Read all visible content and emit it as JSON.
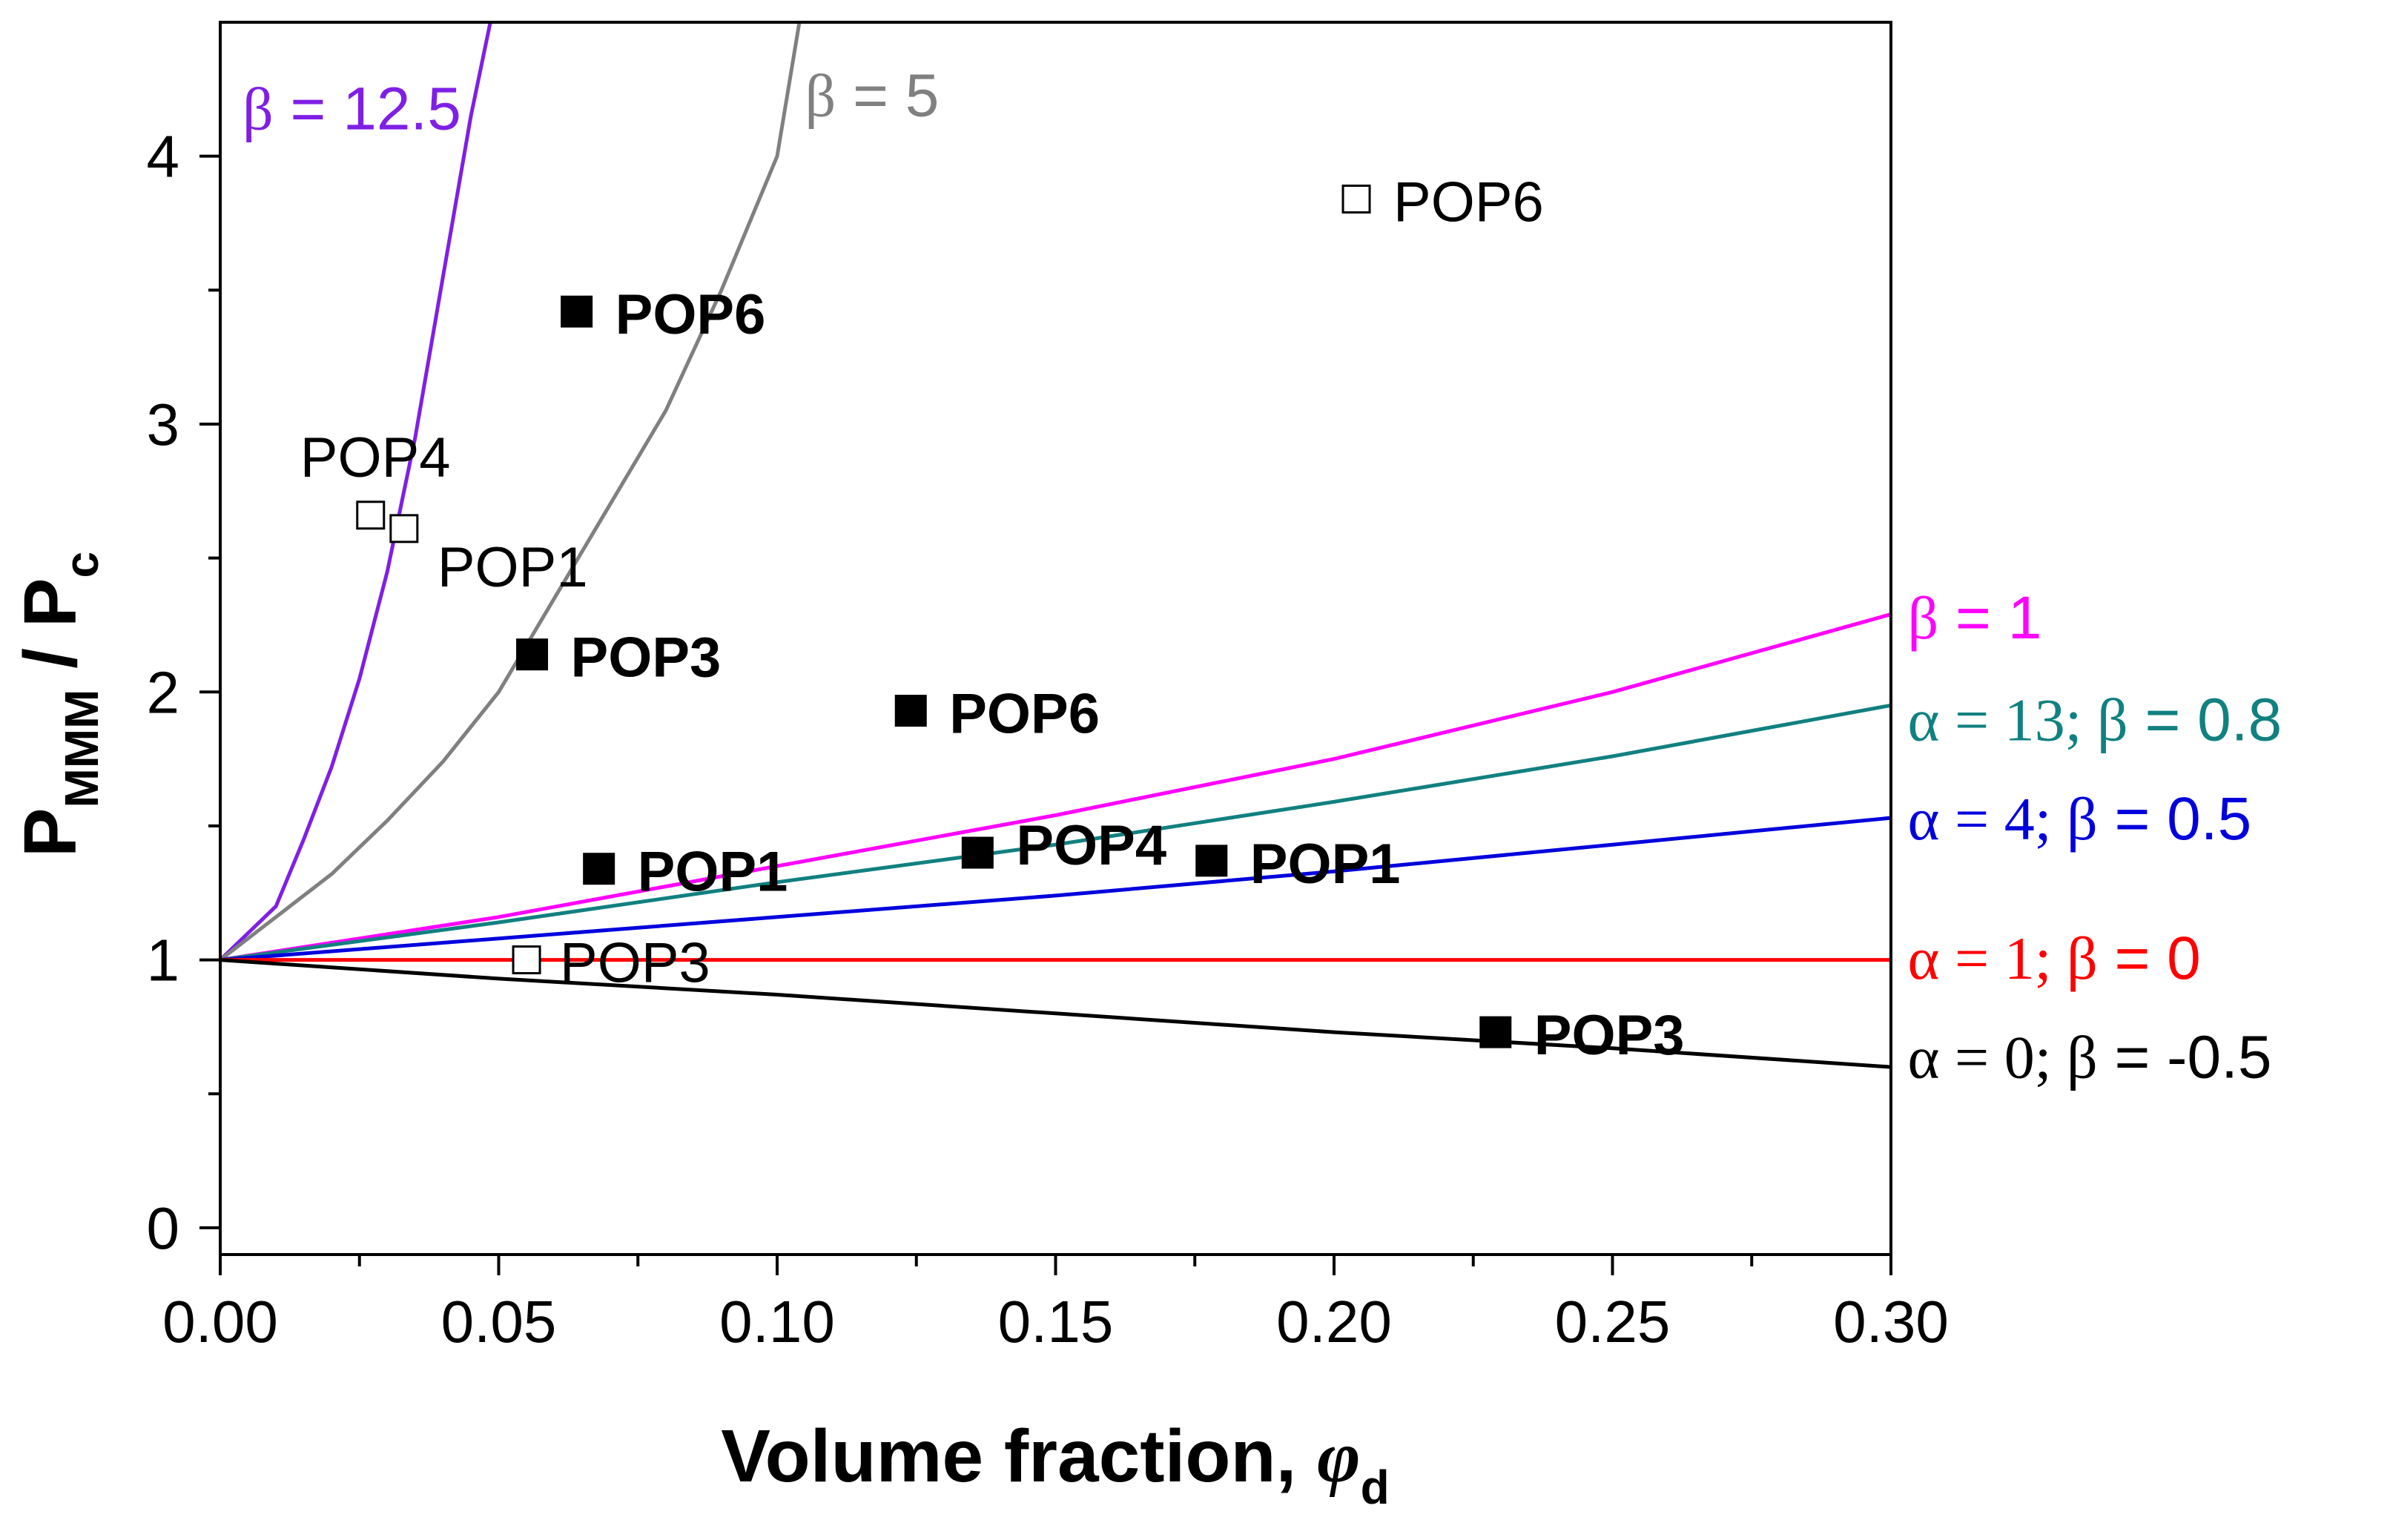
{
  "chart_data": {
    "type": "line",
    "xlabel": "Volume fraction, ",
    "xlabel_symbol": "φ",
    "xlabel_sub": "d",
    "ylabel": "P",
    "ylabel_sub": "MMM",
    "ylabel_mid": " / P",
    "ylabel_sub2": "c",
    "xlim": [
      0,
      0.3
    ],
    "ylim": [
      -0.1,
      4.5
    ],
    "xticks": [
      "0.00",
      "0.05",
      "0.10",
      "0.15",
      "0.20",
      "0.25",
      "0.30"
    ],
    "xtick_values": [
      0,
      0.05,
      0.1,
      0.15,
      0.2,
      0.25,
      0.3
    ],
    "xminor": [
      0.025,
      0.075,
      0.125,
      0.175,
      0.225,
      0.275
    ],
    "yticks": [
      "0",
      "1",
      "2",
      "3",
      "4"
    ],
    "ytick_values": [
      0,
      1,
      2,
      3,
      4
    ],
    "yminor": [
      0.5,
      1.5,
      2.5,
      3.5
    ],
    "series": [
      {
        "name": "β = 12.5",
        "color": "#7f1fe6",
        "x": [
          0,
          0.01,
          0.015,
          0.02,
          0.025,
          0.03,
          0.035,
          0.04,
          0.045,
          0.049
        ],
        "y": [
          1,
          1.2,
          1.45,
          1.72,
          2.05,
          2.45,
          2.95,
          3.55,
          4.15,
          4.55
        ]
      },
      {
        "name": "β = 5",
        "color": "#808080",
        "x": [
          0,
          0.01,
          0.02,
          0.03,
          0.04,
          0.05,
          0.06,
          0.07,
          0.08,
          0.09,
          0.1,
          0.104
        ],
        "y": [
          1,
          1.16,
          1.32,
          1.52,
          1.74,
          2.0,
          2.35,
          2.7,
          3.05,
          3.5,
          4.0,
          4.5
        ]
      },
      {
        "name": "β = 1",
        "color": "#ff00ff",
        "x": [
          0,
          0.05,
          0.1,
          0.15,
          0.2,
          0.25,
          0.3
        ],
        "y": [
          1,
          1.16,
          1.35,
          1.54,
          1.75,
          2.0,
          2.29
        ]
      },
      {
        "name": "α = 13; β = 0.8",
        "color": "#118080",
        "x": [
          0,
          0.05,
          0.1,
          0.15,
          0.2,
          0.25,
          0.3
        ],
        "y": [
          1,
          1.14,
          1.29,
          1.43,
          1.59,
          1.76,
          1.95
        ]
      },
      {
        "name": "α = 4; β = 0.5",
        "color": "#0000dd",
        "x": [
          0,
          0.05,
          0.1,
          0.15,
          0.2,
          0.25,
          0.3
        ],
        "y": [
          1,
          1.08,
          1.16,
          1.24,
          1.33,
          1.43,
          1.53
        ]
      },
      {
        "name": "α = 1; β = 0",
        "color": "#ff0000",
        "x": [
          0,
          0.3
        ],
        "y": [
          1,
          1
        ]
      },
      {
        "name": "α = 0; β = -0.5",
        "color": "#000000",
        "x": [
          0,
          0.05,
          0.1,
          0.15,
          0.2,
          0.25,
          0.3
        ],
        "y": [
          1,
          0.93,
          0.87,
          0.8,
          0.73,
          0.67,
          0.6
        ]
      }
    ],
    "curve_labels": [
      {
        "parts": [
          {
            "t": "β",
            "serif": true
          },
          {
            "t": " = 12.5",
            "serif": false
          }
        ],
        "color": "#7f1fe6",
        "x": 0.004,
        "y": 4.1
      },
      {
        "parts": [
          {
            "t": "β",
            "serif": true
          },
          {
            "t": " = 5",
            "serif": false
          }
        ],
        "color": "#808080",
        "x": 0.105,
        "y": 4.15
      },
      {
        "parts": [
          {
            "t": "β",
            "serif": true
          },
          {
            "t": " = 1",
            "serif": false
          }
        ],
        "color": "#ff00ff",
        "x": 0.303,
        "y": 2.2
      },
      {
        "parts": [
          {
            "t": "α = 13; β",
            "serif": true
          },
          {
            "t": " = 0.8",
            "serif": false
          }
        ],
        "color": "#118080",
        "x": 0.303,
        "y": 1.82
      },
      {
        "parts": [
          {
            "t": "α = 4; β",
            "serif": true
          },
          {
            "t": " = 0.5",
            "serif": false
          }
        ],
        "color": "#0000dd",
        "x": 0.303,
        "y": 1.45
      },
      {
        "parts": [
          {
            "t": "α = 1; β",
            "serif": true
          },
          {
            "t": " = 0",
            "serif": false
          }
        ],
        "color": "#ff0000",
        "x": 0.303,
        "y": 0.93
      },
      {
        "parts": [
          {
            "t": "α = 0; β",
            "serif": true
          },
          {
            "t": " = -0.5",
            "serif": false
          }
        ],
        "color": "#000000",
        "x": 0.303,
        "y": 0.56
      }
    ],
    "points": [
      {
        "label": "POP6",
        "x": 0.064,
        "y": 3.42,
        "filled": true
      },
      {
        "label": "POP3",
        "x": 0.056,
        "y": 2.14,
        "filled": true
      },
      {
        "label": "POP6",
        "x": 0.124,
        "y": 1.93,
        "filled": true
      },
      {
        "label": "POP1",
        "x": 0.068,
        "y": 1.34,
        "filled": true
      },
      {
        "label": "POP4",
        "x": 0.136,
        "y": 1.4,
        "filled": true
      },
      {
        "label": "POP1",
        "x": 0.178,
        "y": 1.37,
        "filled": true
      },
      {
        "label": "POP3",
        "x": 0.229,
        "y": 0.73,
        "filled": true
      },
      {
        "label": "POP6",
        "x": 0.204,
        "y": 3.84,
        "filled": false
      },
      {
        "label": "POP4",
        "x": 0.027,
        "y": 2.66,
        "filled": false
      },
      {
        "label": "POP1",
        "x": 0.033,
        "y": 2.61,
        "filled": false
      },
      {
        "label": "POP3",
        "x": 0.055,
        "y": 1.0,
        "filled": false
      }
    ],
    "point_label_offsets": [
      [
        52,
        12
      ],
      [
        52,
        12
      ],
      [
        52,
        12
      ],
      [
        52,
        12
      ],
      [
        52,
        -2
      ],
      [
        52,
        12
      ],
      [
        52,
        12
      ],
      [
        50,
        12
      ],
      [
        -95,
        -70
      ],
      [
        45,
        60
      ],
      [
        45,
        12
      ]
    ]
  }
}
